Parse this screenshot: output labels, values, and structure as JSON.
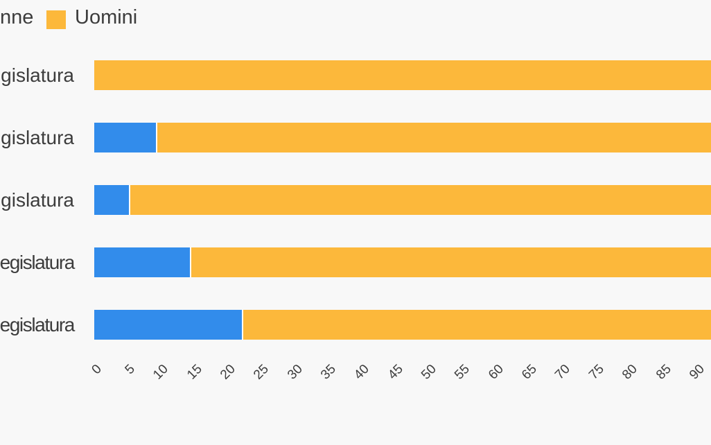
{
  "page": {
    "background": "#f8f8f8",
    "text_color": "#3c3c3c"
  },
  "legend": {
    "position": "top-left",
    "items": [
      {
        "label": "nne",
        "swatch_visible": false,
        "color": "#328CEB",
        "clipped_at_left_edge": true
      },
      {
        "label": "Uomini",
        "swatch_visible": true,
        "color": "#FCB83B",
        "clipped_at_left_edge": false
      }
    ]
  },
  "chart_data": {
    "type": "bar",
    "orientation": "horizontal",
    "stacked": true,
    "title": "",
    "xlabel": "",
    "ylabel": "",
    "categories": [
      "gislatura",
      "gislatura",
      "gislatura",
      "egislatura",
      "egislatura"
    ],
    "categories_clipped_left": true,
    "series": [
      {
        "name": "nne",
        "color": "#328CEB",
        "values": [
          0,
          9.3,
          5.2,
          14.3,
          22.1
        ]
      },
      {
        "name": "Uomini",
        "color": "#FCB83B",
        "values": [
          100,
          90.7,
          94.8,
          85.7,
          77.9
        ]
      }
    ],
    "bar_total": 100,
    "bars_clipped_right": true,
    "x_ticks": [
      0,
      5,
      10,
      15,
      20,
      25,
      30,
      35,
      40,
      45,
      50,
      55,
      60,
      65,
      70,
      75,
      80,
      85,
      90
    ],
    "x_tick_rotation_deg": -45,
    "xlim_visible": [
      0,
      92
    ],
    "grid": false,
    "legend_position": "top-left"
  }
}
